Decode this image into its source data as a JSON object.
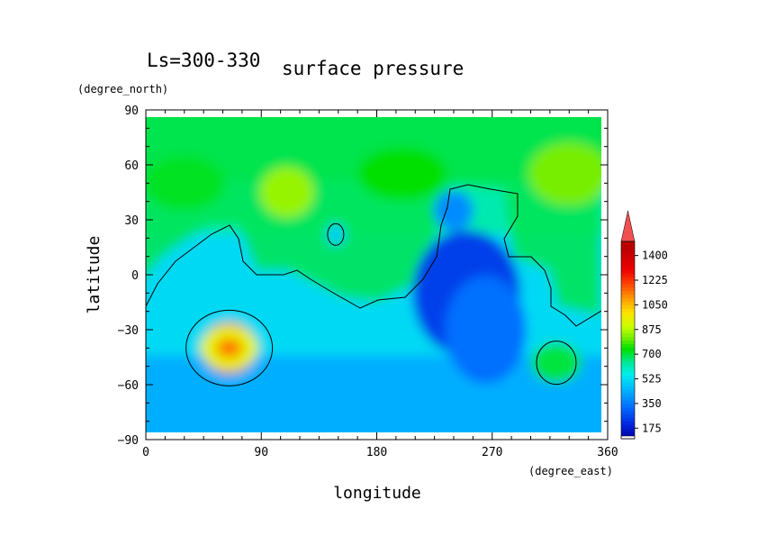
{
  "chart_data": {
    "type": "heatmap",
    "title": "surface pressure",
    "subtitle": "Ls=300-330",
    "xlabel": "longitude",
    "ylabel": "latitude",
    "x_units": "(degree_east)",
    "y_units": "(degree_north)",
    "xlim": [
      0,
      360
    ],
    "ylim": [
      -90,
      90
    ],
    "x_ticks": [
      "0",
      "90",
      "180",
      "270",
      "360"
    ],
    "y_ticks": [
      "90",
      "60",
      "30",
      "0",
      "−30",
      "−60",
      "−90"
    ],
    "x_tick_values": [
      0,
      90,
      180,
      270,
      360
    ],
    "y_tick_values": [
      90,
      60,
      30,
      0,
      -30,
      -60,
      -90
    ],
    "colorbar": {
      "ticks": [
        "175",
        "350",
        "525",
        "700",
        "875",
        "1050",
        "1225",
        "1400"
      ],
      "tick_values": [
        175,
        350,
        525,
        700,
        875,
        1050,
        1225,
        1400
      ],
      "min": 100,
      "max": 1500,
      "extend": "max"
    },
    "contour_level_note": "single black contour line",
    "features": [
      {
        "lon": 250,
        "lat": -10,
        "value": 250
      },
      {
        "lon": 265,
        "lat": -30,
        "value": 330
      },
      {
        "lon": 240,
        "lat": 35,
        "value": 380
      },
      {
        "lon": 65,
        "lat": -40,
        "value": 1150
      },
      {
        "lon": 320,
        "lat": -48,
        "value": 700
      },
      {
        "lon": 148,
        "lat": 22,
        "value": 500
      },
      {
        "lon": 110,
        "lat": 45,
        "value": 850
      },
      {
        "lon": 330,
        "lat": 55,
        "value": 820
      },
      {
        "lon": 30,
        "lat": 50,
        "value": 720
      },
      {
        "lon": 200,
        "lat": 55,
        "value": 740
      }
    ]
  },
  "colors": {
    "background": "#ffffff",
    "axis": "#000000",
    "contour": "#000000"
  }
}
